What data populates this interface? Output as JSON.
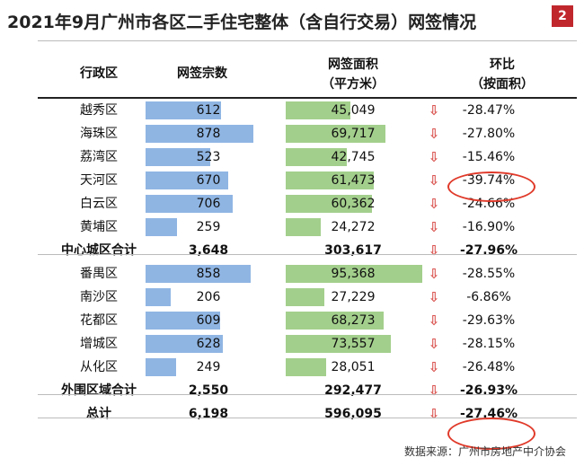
{
  "title": "2021年9月广州市各区二手住宅整体（含自行交易）网签情况",
  "badge": "2",
  "headers": {
    "district": "行政区",
    "count": "网签宗数",
    "area_line1": "网签面积",
    "area_line2": "（平方米）",
    "ratio_line1": "环比",
    "ratio_line2": "（按面积）"
  },
  "rows": [
    {
      "name": "越秀区",
      "count": "612",
      "area": "45,049",
      "ratio": "-28.47%"
    },
    {
      "name": "海珠区",
      "count": "878",
      "area": "69,717",
      "ratio": "-27.80%"
    },
    {
      "name": "荔湾区",
      "count": "523",
      "area": "42,745",
      "ratio": "-15.46%"
    },
    {
      "name": "天河区",
      "count": "670",
      "area": "61,473",
      "ratio": "-39.74%"
    },
    {
      "name": "白云区",
      "count": "706",
      "area": "60,362",
      "ratio": "-24.66%"
    },
    {
      "name": "黄埔区",
      "count": "259",
      "area": "24,272",
      "ratio": "-16.90%"
    },
    {
      "name": "中心城区合计",
      "count": "3,648",
      "area": "303,617",
      "ratio": "-27.96%"
    },
    {
      "name": "番禺区",
      "count": "858",
      "area": "95,368",
      "ratio": "-28.55%"
    },
    {
      "name": "南沙区",
      "count": "206",
      "area": "27,229",
      "ratio": "-6.86%"
    },
    {
      "name": "花都区",
      "count": "609",
      "area": "68,273",
      "ratio": "-29.63%"
    },
    {
      "name": "增城区",
      "count": "628",
      "area": "73,557",
      "ratio": "-28.15%"
    },
    {
      "name": "从化区",
      "count": "249",
      "area": "28,051",
      "ratio": "-26.48%"
    },
    {
      "name": "外围区域合计",
      "count": "2,550",
      "area": "292,477",
      "ratio": "-26.93%"
    },
    {
      "name": "总计",
      "count": "6,198",
      "area": "596,095",
      "ratio": "-27.46%"
    }
  ],
  "bar_values": {
    "count": [
      612,
      878,
      523,
      670,
      706,
      259,
      null,
      858,
      206,
      609,
      628,
      249,
      null,
      null
    ],
    "area": [
      45049,
      69717,
      42745,
      61473,
      60362,
      24272,
      null,
      95368,
      27229,
      68273,
      73557,
      28051,
      null,
      null
    ]
  },
  "trend_arrow": "⇩",
  "highlighted_rows": [
    3,
    13
  ],
  "colors": {
    "count_bar": "#8fb5e3",
    "area_bar": "#a3cf8c",
    "arrow": "#d9534f",
    "highlight": "#e03a2a",
    "badge": "#c0272d"
  },
  "source": "数据来源：广州市房地产中介协会"
}
